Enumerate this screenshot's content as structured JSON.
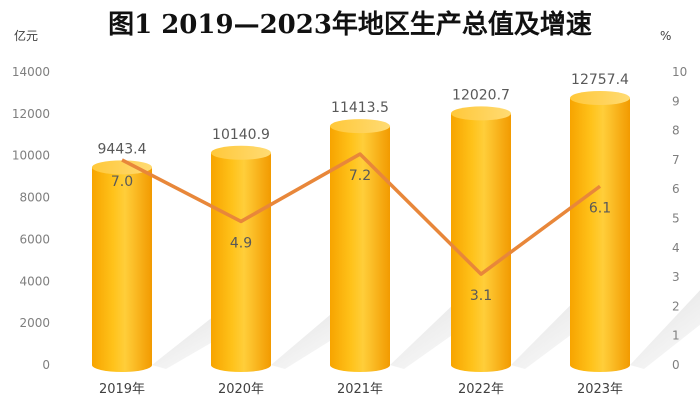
{
  "chart_data": {
    "type": "bar",
    "title": "图1  2019—2023年地区生产总值及增速",
    "categories": [
      "2019年",
      "2020年",
      "2021年",
      "2022年",
      "2023年"
    ],
    "series": [
      {
        "name": "",
        "type": "bar",
        "axis": "left",
        "values": [
          9443.4,
          10140.9,
          11413.5,
          12020.7,
          12757.4
        ],
        "labels": [
          "9443.4",
          "10140.9",
          "11413.5",
          "12020.7",
          "12757.4"
        ]
      },
      {
        "name": "",
        "type": "line",
        "axis": "right",
        "values": [
          7.0,
          4.9,
          7.2,
          3.1,
          6.1
        ],
        "labels": [
          "7.0",
          "4.9",
          "7.2",
          "3.1",
          "6.1"
        ]
      }
    ],
    "left_axis": {
      "unit": "亿元",
      "ylim": [
        0,
        14000
      ],
      "ticks": [
        "0",
        "2000",
        "4000",
        "6000",
        "8000",
        "10000",
        "12000",
        "14000"
      ]
    },
    "right_axis": {
      "unit": "%",
      "ylim": [
        0,
        10
      ],
      "ticks": [
        "0",
        "1",
        "2",
        "3",
        "4",
        "5",
        "6",
        "7",
        "8",
        "9",
        "10"
      ]
    },
    "grid": false,
    "colors": {
      "bar": "#FFB300",
      "bar_light": "#FFD24D",
      "bar_dark": "#F08C00",
      "line": "#E8873A",
      "text": "#595959"
    }
  }
}
